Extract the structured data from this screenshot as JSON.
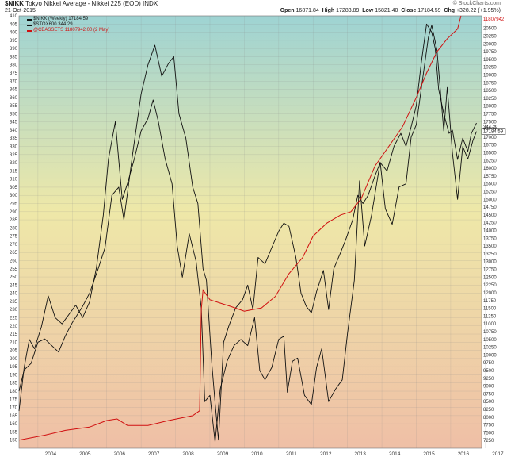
{
  "header": {
    "symbol": "$NIKK",
    "name": "Tokyo Nikkei Average - Nikkei 225 (EOD)",
    "exchange": "INDX",
    "date": "21-Oct-2015",
    "open_label": "Open",
    "open": "16871.84",
    "high_label": "High",
    "high": "17283.89",
    "low_label": "Low",
    "low": "15821.40",
    "close_label": "Close",
    "close": "17184.59",
    "chg_label": "Chg",
    "chg": "+328.22 (+1.95%)",
    "credit": "© StockCharts.com"
  },
  "legend": [
    {
      "text": "$NIKK (Weekly) 17184.59",
      "color": "#111111"
    },
    {
      "text": "$STOX600 344.29",
      "color": "#111111"
    },
    {
      "text": "@CBASSETS 11807942.00 (2 May)",
      "color": "#d01010"
    }
  ],
  "colors": {
    "nikk": "#111111",
    "stox": "#111111",
    "cbassets": "#d01010"
  },
  "chart_data": {
    "type": "line",
    "x_ticks": [
      "2004",
      "2005",
      "2006",
      "2007",
      "2008",
      "2009",
      "2010",
      "2011",
      "2012",
      "2013",
      "2014",
      "2015",
      "2016",
      "2017"
    ],
    "x_range": [
      2003.45,
      2016.9
    ],
    "left_axis": {
      "min": 145,
      "max": 410,
      "ticks": [
        150,
        155,
        160,
        165,
        170,
        175,
        180,
        185,
        190,
        195,
        200,
        205,
        210,
        215,
        220,
        225,
        230,
        235,
        240,
        245,
        250,
        255,
        260,
        265,
        270,
        275,
        280,
        285,
        290,
        295,
        300,
        305,
        310,
        315,
        320,
        325,
        330,
        335,
        340,
        345,
        350,
        355,
        360,
        365,
        370,
        375,
        380,
        385,
        390,
        395,
        400,
        405,
        410
      ]
    },
    "right_axis": {
      "min": 7000,
      "max": 20900,
      "ticks": [
        7250,
        7500,
        7750,
        8000,
        8250,
        8500,
        8750,
        9000,
        9250,
        9500,
        9750,
        10000,
        10250,
        10500,
        10750,
        11000,
        11250,
        11500,
        11750,
        12000,
        12250,
        12500,
        12750,
        13000,
        13250,
        13500,
        13750,
        14000,
        14250,
        14500,
        14750,
        15000,
        15250,
        15500,
        15750,
        16000,
        16250,
        16500,
        16750,
        17000,
        17250,
        17500,
        17750,
        18000,
        18250,
        18500,
        18750,
        19000,
        19250,
        19500,
        19750,
        20000,
        20250,
        20500
      ]
    },
    "last_labels": {
      "right": "17184.59",
      "right2": "344.29",
      "right3": "11807942"
    },
    "series": [
      {
        "name": "$NIKK (Weekly)",
        "axis": "right",
        "color": "#111111",
        "points": [
          [
            2003.45,
            8200
          ],
          [
            2003.6,
            9600
          ],
          [
            2003.75,
            10500
          ],
          [
            2003.9,
            10200
          ],
          [
            2004.1,
            10900
          ],
          [
            2004.3,
            11900
          ],
          [
            2004.5,
            11200
          ],
          [
            2004.7,
            11000
          ],
          [
            2004.9,
            11300
          ],
          [
            2005.1,
            11600
          ],
          [
            2005.3,
            11200
          ],
          [
            2005.5,
            11700
          ],
          [
            2005.7,
            12800
          ],
          [
            2005.9,
            14500
          ],
          [
            2006.05,
            16300
          ],
          [
            2006.25,
            17500
          ],
          [
            2006.45,
            15000
          ],
          [
            2006.6,
            15500
          ],
          [
            2006.8,
            16300
          ],
          [
            2007.0,
            17200
          ],
          [
            2007.2,
            17600
          ],
          [
            2007.35,
            18200
          ],
          [
            2007.5,
            17500
          ],
          [
            2007.7,
            16300
          ],
          [
            2007.9,
            15500
          ],
          [
            2008.05,
            13500
          ],
          [
            2008.2,
            12500
          ],
          [
            2008.4,
            13900
          ],
          [
            2008.6,
            13000
          ],
          [
            2008.75,
            11500
          ],
          [
            2008.85,
            8500
          ],
          [
            2009.0,
            8700
          ],
          [
            2009.15,
            7200
          ],
          [
            2009.3,
            8900
          ],
          [
            2009.5,
            9800
          ],
          [
            2009.7,
            10300
          ],
          [
            2009.9,
            10500
          ],
          [
            2010.1,
            10300
          ],
          [
            2010.3,
            11200
          ],
          [
            2010.45,
            9500
          ],
          [
            2010.6,
            9200
          ],
          [
            2010.8,
            9600
          ],
          [
            2011.0,
            10500
          ],
          [
            2011.15,
            10600
          ],
          [
            2011.25,
            8800
          ],
          [
            2011.4,
            9800
          ],
          [
            2011.55,
            9900
          ],
          [
            2011.75,
            8700
          ],
          [
            2011.95,
            8400
          ],
          [
            2012.1,
            9600
          ],
          [
            2012.25,
            10200
          ],
          [
            2012.45,
            8500
          ],
          [
            2012.65,
            8900
          ],
          [
            2012.85,
            9200
          ],
          [
            2013.0,
            10700
          ],
          [
            2013.2,
            12400
          ],
          [
            2013.35,
            15600
          ],
          [
            2013.5,
            13500
          ],
          [
            2013.7,
            14500
          ],
          [
            2013.95,
            16200
          ],
          [
            2014.1,
            14700
          ],
          [
            2014.3,
            14200
          ],
          [
            2014.5,
            15400
          ],
          [
            2014.7,
            15500
          ],
          [
            2014.85,
            17000
          ],
          [
            2015.0,
            17400
          ],
          [
            2015.2,
            19000
          ],
          [
            2015.35,
            20200
          ],
          [
            2015.45,
            20600
          ],
          [
            2015.6,
            19800
          ],
          [
            2015.7,
            18500
          ],
          [
            2015.8,
            17200
          ],
          [
            2015.9,
            18600
          ],
          [
            2016.05,
            16500
          ],
          [
            2016.2,
            15000
          ],
          [
            2016.35,
            16700
          ],
          [
            2016.5,
            16300
          ],
          [
            2016.65,
            16900
          ],
          [
            2016.75,
            17184.59
          ]
        ]
      },
      {
        "name": "$STOX600",
        "axis": "left",
        "color": "#111111",
        "points": [
          [
            2003.45,
            180
          ],
          [
            2003.6,
            193
          ],
          [
            2003.8,
            197
          ],
          [
            2004.0,
            210
          ],
          [
            2004.2,
            212
          ],
          [
            2004.4,
            208
          ],
          [
            2004.6,
            204
          ],
          [
            2004.8,
            214
          ],
          [
            2005.0,
            222
          ],
          [
            2005.3,
            232
          ],
          [
            2005.5,
            240
          ],
          [
            2005.75,
            255
          ],
          [
            2005.95,
            268
          ],
          [
            2006.15,
            300
          ],
          [
            2006.35,
            305
          ],
          [
            2006.5,
            285
          ],
          [
            2006.75,
            325
          ],
          [
            2007.0,
            362
          ],
          [
            2007.2,
            380
          ],
          [
            2007.4,
            392
          ],
          [
            2007.6,
            373
          ],
          [
            2007.8,
            381
          ],
          [
            2007.95,
            385
          ],
          [
            2008.1,
            350
          ],
          [
            2008.3,
            335
          ],
          [
            2008.5,
            305
          ],
          [
            2008.65,
            295
          ],
          [
            2008.8,
            255
          ],
          [
            2008.9,
            248
          ],
          [
            2009.05,
            198
          ],
          [
            2009.15,
            173
          ],
          [
            2009.25,
            150
          ],
          [
            2009.4,
            210
          ],
          [
            2009.55,
            220
          ],
          [
            2009.75,
            231
          ],
          [
            2009.95,
            236
          ],
          [
            2010.1,
            245
          ],
          [
            2010.25,
            230
          ],
          [
            2010.4,
            262
          ],
          [
            2010.6,
            258
          ],
          [
            2010.8,
            268
          ],
          [
            2011.0,
            278
          ],
          [
            2011.15,
            283
          ],
          [
            2011.3,
            281
          ],
          [
            2011.5,
            262
          ],
          [
            2011.65,
            240
          ],
          [
            2011.8,
            232
          ],
          [
            2011.95,
            228
          ],
          [
            2012.1,
            241
          ],
          [
            2012.3,
            254
          ],
          [
            2012.45,
            230
          ],
          [
            2012.6,
            255
          ],
          [
            2012.8,
            265
          ],
          [
            2012.95,
            273
          ],
          [
            2013.15,
            285
          ],
          [
            2013.3,
            300
          ],
          [
            2013.45,
            295
          ],
          [
            2013.6,
            300
          ],
          [
            2013.8,
            312
          ],
          [
            2013.95,
            320
          ],
          [
            2014.15,
            315
          ],
          [
            2014.35,
            330
          ],
          [
            2014.55,
            338
          ],
          [
            2014.7,
            330
          ],
          [
            2014.85,
            342
          ],
          [
            2015.0,
            355
          ],
          [
            2015.15,
            382
          ],
          [
            2015.3,
            405
          ],
          [
            2015.45,
            400
          ],
          [
            2015.55,
            390
          ],
          [
            2015.65,
            365
          ],
          [
            2015.8,
            350
          ],
          [
            2015.95,
            338
          ],
          [
            2016.05,
            340
          ],
          [
            2016.2,
            322
          ],
          [
            2016.35,
            335
          ],
          [
            2016.5,
            327
          ],
          [
            2016.6,
            338
          ],
          [
            2016.75,
            344.29
          ]
        ]
      }
    ]
  }
}
